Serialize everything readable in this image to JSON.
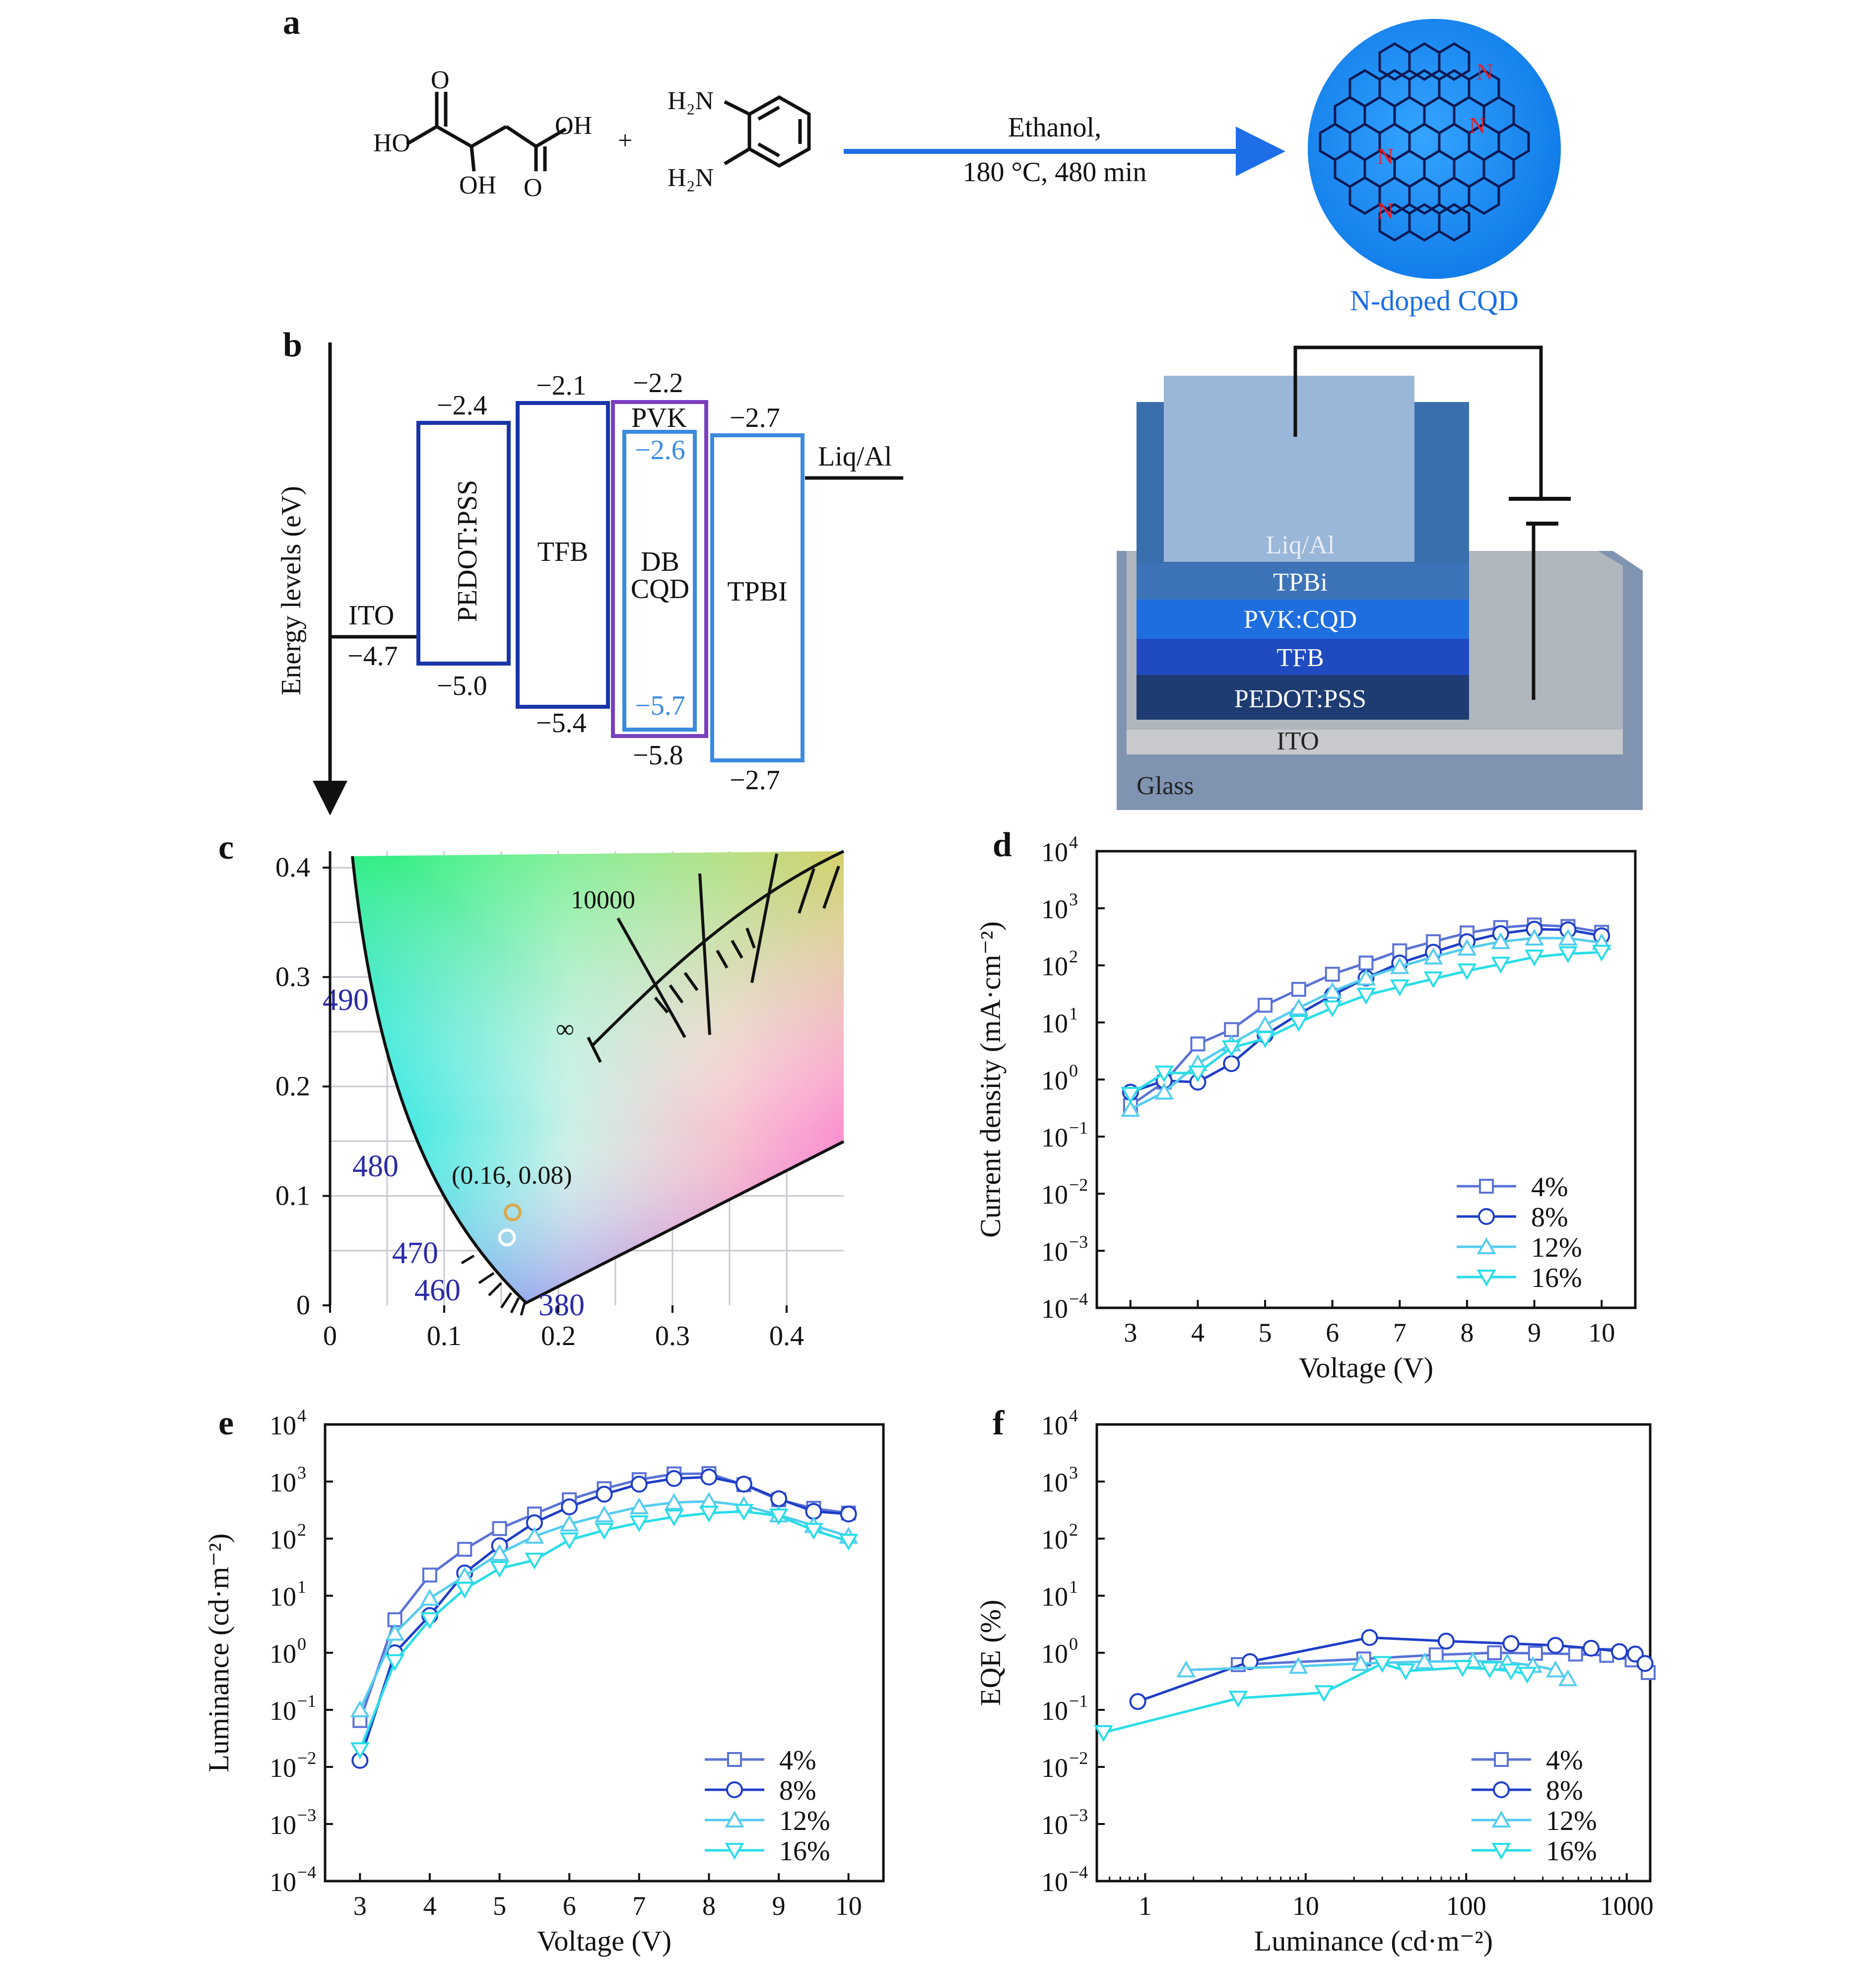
{
  "panels": {
    "a": {
      "label": "a",
      "reactant1": {
        "o_top": "O",
        "ho_left": "HO",
        "oh_right": "OH",
        "oh_bottom": "OH",
        "o_bottom": "O"
      },
      "plus": "+",
      "reactant2": {
        "nh2_top": "H₂N",
        "nh2_bottom": "H₂N"
      },
      "condition_line1": "Ethanol,",
      "condition_line2": "180 °C, 480 min",
      "n_atom": "N",
      "product_label": "N-doped CQD",
      "colors": {
        "arrow": "#1e6ee8",
        "dot": "#1a8af0",
        "n_atom": "#e0202a",
        "label": "#1a6ee8"
      }
    },
    "b": {
      "label": "b",
      "axis_label": "Energy levels (eV)",
      "left_electrode": {
        "name": "ITO",
        "value": "−4.7"
      },
      "right_electrode": {
        "name": "Liq/Al"
      },
      "layers": [
        {
          "name": "PEDOT:PSS",
          "top": "−2.4",
          "bottom": "−5.0"
        },
        {
          "name": "TFB",
          "top": "−2.1",
          "bottom": "−5.4"
        },
        {
          "name": "PVK",
          "top": "−2.2",
          "bottom": "−5.8"
        },
        {
          "name_line1": "DB",
          "name_line2": "CQD",
          "top": "−2.6",
          "bottom": "−5.7"
        },
        {
          "name": "TPBI",
          "top": "−2.7",
          "bottom": "−2.7"
        }
      ],
      "stack": [
        "Liq/Al",
        "TPBi",
        "PVK:CQD",
        "TFB",
        "PEDOT:PSS",
        "ITO",
        "Glass"
      ],
      "colors": {
        "box": "#1a35a8",
        "pvk": "#7a3fbf",
        "cqd": "#3a8ae0",
        "tpbi": "#3a8ae0"
      }
    },
    "c": {
      "label": "c",
      "x_ticks": [
        "0",
        "0.1",
        "0.2",
        "0.3",
        "0.4"
      ],
      "y_ticks": [
        "0",
        "0.1",
        "0.2",
        "0.3",
        "0.4"
      ],
      "wavelengths": [
        "490",
        "480",
        "470",
        "460",
        "380"
      ],
      "planck_labels": [
        "10000",
        "∞"
      ],
      "point_label": "(0.16, 0.08)",
      "points": [
        {
          "x": 0.16,
          "y": 0.085
        },
        {
          "x": 0.155,
          "y": 0.062
        }
      ]
    }
  },
  "chart_data": [
    {
      "panel": "d",
      "type": "line",
      "label": "d",
      "xlabel": "Voltage (V)",
      "ylabel": "Current density (mA·cm⁻²)",
      "y_scale": "log",
      "xlim": [
        2.5,
        10.5
      ],
      "ylim": [
        0.0001,
        10000
      ],
      "x_ticks": [
        3,
        4,
        5,
        6,
        7,
        8,
        9,
        10
      ],
      "y_tick_labels": [
        [
          "10",
          "−4"
        ],
        [
          "10",
          "−3"
        ],
        [
          "10",
          "−2"
        ],
        [
          "10",
          "−1"
        ],
        [
          "10",
          "0"
        ],
        [
          "10",
          "1"
        ],
        [
          "10",
          "2"
        ],
        [
          "10",
          "3"
        ],
        [
          "10",
          "4"
        ]
      ],
      "legend_position": "bottom-right",
      "series": [
        {
          "name": "4%",
          "color": "#5a72d6",
          "marker": "square",
          "x": [
            3,
            3.5,
            4,
            4.5,
            5,
            5.5,
            6,
            6.5,
            7,
            7.5,
            8,
            8.5,
            9,
            9.5,
            10
          ],
          "y": [
            0.35,
            0.9,
            4.2,
            7.5,
            20,
            38,
            70,
            110,
            180,
            260,
            370,
            460,
            510,
            480,
            380
          ]
        },
        {
          "name": "8%",
          "color": "#1e3ec8",
          "marker": "circle",
          "x": [
            3,
            3.5,
            4,
            4.5,
            5,
            5.5,
            6,
            6.5,
            7,
            7.5,
            8,
            8.5,
            9,
            9.5,
            10
          ],
          "y": [
            0.6,
            0.95,
            0.9,
            1.9,
            6,
            14,
            30,
            60,
            110,
            170,
            260,
            360,
            430,
            420,
            330
          ]
        },
        {
          "name": "12%",
          "color": "#55ccef",
          "marker": "triangle-up",
          "x": [
            3,
            3.5,
            4,
            4.5,
            5,
            5.5,
            6,
            6.5,
            7,
            7.5,
            8,
            8.5,
            9,
            9.5,
            10
          ],
          "y": [
            0.3,
            0.6,
            1.9,
            4.2,
            9,
            18,
            35,
            60,
            95,
            140,
            200,
            260,
            300,
            300,
            250
          ]
        },
        {
          "name": "16%",
          "color": "#28dde8",
          "marker": "triangle-down",
          "x": [
            3,
            3.5,
            4,
            4.5,
            5,
            5.5,
            6,
            6.5,
            7,
            7.5,
            8,
            8.5,
            9,
            9.5,
            10
          ],
          "y": [
            0.55,
            1.3,
            1.3,
            3.6,
            5.2,
            10,
            18,
            30,
            42,
            58,
            80,
            105,
            140,
            160,
            170
          ]
        }
      ]
    },
    {
      "panel": "e",
      "type": "line",
      "label": "e",
      "xlabel": "Voltage (V)",
      "ylabel": "Luminance (cd·m⁻²)",
      "y_scale": "log",
      "xlim": [
        2.5,
        10.5
      ],
      "ylim": [
        0.0001,
        10000
      ],
      "x_ticks": [
        3,
        4,
        5,
        6,
        7,
        8,
        9,
        10
      ],
      "y_tick_labels": [
        [
          "10",
          "−4"
        ],
        [
          "10",
          "−3"
        ],
        [
          "10",
          "−2"
        ],
        [
          "10",
          "−1"
        ],
        [
          "10",
          "0"
        ],
        [
          "10",
          "1"
        ],
        [
          "10",
          "2"
        ],
        [
          "10",
          "3"
        ],
        [
          "10",
          "4"
        ]
      ],
      "legend_position": "bottom-right",
      "series": [
        {
          "name": "4%",
          "color": "#5a72d6",
          "marker": "square",
          "x": [
            3,
            3.5,
            4,
            4.5,
            5,
            5.5,
            6,
            6.5,
            7,
            7.5,
            8,
            8.5,
            9,
            9.5,
            10
          ],
          "y": [
            0.065,
            3.8,
            23,
            65,
            150,
            270,
            480,
            750,
            1080,
            1360,
            1380,
            880,
            480,
            340,
            280
          ]
        },
        {
          "name": "8%",
          "color": "#1e3ec8",
          "marker": "circle",
          "x": [
            3,
            3.5,
            4,
            4.5,
            5,
            5.5,
            6,
            6.5,
            7,
            7.5,
            8,
            8.5,
            9,
            9.5,
            10
          ],
          "y": [
            0.013,
            1.0,
            4.5,
            25,
            75,
            190,
            360,
            600,
            900,
            1130,
            1200,
            900,
            500,
            300,
            270
          ]
        },
        {
          "name": "12%",
          "color": "#55ccef",
          "marker": "triangle-up",
          "x": [
            3,
            3.5,
            4,
            4.5,
            5,
            5.5,
            6,
            6.5,
            7,
            7.5,
            8,
            8.5,
            9,
            9.5,
            10
          ],
          "y": [
            0.1,
            2.2,
            9,
            22,
            55,
            110,
            180,
            260,
            360,
            430,
            450,
            380,
            260,
            170,
            110
          ]
        },
        {
          "name": "16%",
          "color": "#28dde8",
          "marker": "triangle-down",
          "x": [
            3,
            3.5,
            4,
            4.5,
            5,
            5.5,
            6,
            6.5,
            7,
            7.5,
            8,
            8.5,
            9,
            9.5,
            10
          ],
          "y": [
            0.02,
            0.7,
            3.8,
            13,
            30,
            42,
            95,
            140,
            190,
            240,
            280,
            300,
            250,
            140,
            90
          ]
        }
      ]
    },
    {
      "panel": "f",
      "type": "line",
      "label": "f",
      "xlabel": "Luminance (cd·m⁻²)",
      "ylabel": "EQE (%)",
      "x_scale": "log",
      "y_scale": "log",
      "xlim": [
        0.5,
        1400
      ],
      "ylim": [
        0.0001,
        10000
      ],
      "x_ticks": [
        1,
        10,
        100,
        1000
      ],
      "x_tick_labels": [
        "1",
        "10",
        "100",
        "1000"
      ],
      "y_tick_labels": [
        [
          "10",
          "−4"
        ],
        [
          "10",
          "−3"
        ],
        [
          "10",
          "−2"
        ],
        [
          "10",
          "−1"
        ],
        [
          "10",
          "0"
        ],
        [
          "10",
          "1"
        ],
        [
          "10",
          "2"
        ],
        [
          "10",
          "3"
        ],
        [
          "10",
          "4"
        ]
      ],
      "legend_position": "bottom-right",
      "series": [
        {
          "name": "4%",
          "color": "#5a72d6",
          "marker": "square",
          "x": [
            3.8,
            23,
            65,
            150,
            270,
            480,
            750,
            1080,
            1360
          ],
          "y": [
            0.62,
            0.78,
            0.92,
            1.0,
            0.98,
            0.95,
            0.9,
            0.75,
            0.45
          ]
        },
        {
          "name": "8%",
          "color": "#1e3ec8",
          "marker": "circle",
          "x": [
            0.9,
            4.5,
            25,
            75,
            190,
            360,
            600,
            900,
            1130,
            1300
          ],
          "y": [
            0.14,
            0.7,
            1.85,
            1.6,
            1.45,
            1.35,
            1.2,
            1.05,
            0.95,
            0.65
          ]
        },
        {
          "name": "12%",
          "color": "#55ccef",
          "marker": "triangle-up",
          "x": [
            1.8,
            9,
            22,
            55,
            110,
            180,
            260,
            360,
            430
          ],
          "y": [
            0.5,
            0.58,
            0.65,
            0.7,
            0.72,
            0.68,
            0.6,
            0.5,
            0.35
          ]
        },
        {
          "name": "16%",
          "color": "#28dde8",
          "marker": "triangle-down",
          "x": [
            0.55,
            3.8,
            13,
            30,
            42,
            95,
            140,
            190,
            240
          ],
          "y": [
            0.04,
            0.16,
            0.2,
            0.65,
            0.48,
            0.55,
            0.52,
            0.48,
            0.42
          ]
        }
      ]
    }
  ]
}
